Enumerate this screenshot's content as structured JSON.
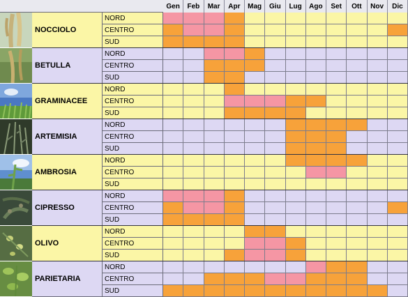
{
  "months": [
    "Gen",
    "Feb",
    "Mar",
    "Apr",
    "Mag",
    "Giu",
    "Lug",
    "Ago",
    "Set",
    "Ott",
    "Nov",
    "Dic"
  ],
  "regions": [
    "NORD",
    "CENTRO",
    "SUD"
  ],
  "legend_colors": {
    "0": "#fbf6a6",
    "1": "#f7a23a",
    "2": "#f596a4",
    "3": "#ddd8f3"
  },
  "plants": [
    {
      "name": "NOCCIOLO",
      "photo_icon": "hazel-catkin-photo",
      "label_bg": "#fbf6a6",
      "rows": [
        [
          2,
          2,
          2,
          1,
          0,
          0,
          0,
          0,
          0,
          0,
          0,
          0
        ],
        [
          1,
          2,
          2,
          1,
          0,
          0,
          0,
          0,
          0,
          0,
          0,
          1
        ],
        [
          1,
          1,
          1,
          1,
          0,
          0,
          0,
          0,
          0,
          0,
          0,
          0
        ]
      ]
    },
    {
      "name": "BETULLA",
      "photo_icon": "birch-catkin-photo",
      "label_bg": "#ddd8f3",
      "rows": [
        [
          3,
          3,
          2,
          2,
          1,
          3,
          3,
          3,
          3,
          3,
          3,
          3
        ],
        [
          3,
          3,
          1,
          1,
          1,
          3,
          3,
          3,
          3,
          3,
          3,
          3
        ],
        [
          3,
          3,
          1,
          1,
          3,
          3,
          3,
          3,
          3,
          3,
          3,
          3
        ]
      ]
    },
    {
      "name": "GRAMINACEE",
      "photo_icon": "grass-photo",
      "label_bg": "#fbf6a6",
      "rows": [
        [
          0,
          0,
          0,
          1,
          0,
          0,
          0,
          0,
          0,
          0,
          0,
          0
        ],
        [
          0,
          0,
          0,
          2,
          2,
          2,
          1,
          1,
          0,
          0,
          0,
          0
        ],
        [
          0,
          0,
          0,
          1,
          1,
          1,
          1,
          0,
          0,
          0,
          0,
          0
        ]
      ]
    },
    {
      "name": "ARTEMISIA",
      "photo_icon": "mugwort-photo",
      "label_bg": "#ddd8f3",
      "rows": [
        [
          3,
          3,
          3,
          3,
          3,
          3,
          1,
          1,
          1,
          1,
          3,
          3
        ],
        [
          3,
          3,
          3,
          3,
          3,
          3,
          1,
          1,
          1,
          3,
          3,
          3
        ],
        [
          3,
          3,
          3,
          3,
          3,
          3,
          1,
          1,
          1,
          3,
          3,
          3
        ]
      ]
    },
    {
      "name": "AMBROSIA",
      "photo_icon": "ragweed-photo",
      "label_bg": "#fbf6a6",
      "rows": [
        [
          0,
          0,
          0,
          0,
          0,
          0,
          1,
          1,
          1,
          1,
          0,
          0
        ],
        [
          0,
          0,
          0,
          0,
          0,
          0,
          0,
          2,
          2,
          0,
          0,
          0
        ],
        [
          0,
          0,
          0,
          0,
          0,
          0,
          0,
          0,
          0,
          0,
          0,
          0
        ]
      ]
    },
    {
      "name": "CIPRESSO",
      "photo_icon": "cypress-photo",
      "label_bg": "#ddd8f3",
      "rows": [
        [
          2,
          2,
          2,
          1,
          3,
          3,
          3,
          3,
          3,
          3,
          3,
          3
        ],
        [
          1,
          2,
          2,
          1,
          3,
          3,
          3,
          3,
          3,
          3,
          3,
          1
        ],
        [
          1,
          1,
          1,
          1,
          3,
          3,
          3,
          3,
          3,
          3,
          3,
          3
        ]
      ]
    },
    {
      "name": "OLIVO",
      "photo_icon": "olive-photo",
      "label_bg": "#fbf6a6",
      "rows": [
        [
          0,
          0,
          0,
          0,
          1,
          1,
          0,
          0,
          0,
          0,
          0,
          0
        ],
        [
          0,
          0,
          0,
          0,
          2,
          2,
          1,
          0,
          0,
          0,
          0,
          0
        ],
        [
          0,
          0,
          0,
          1,
          2,
          2,
          1,
          0,
          0,
          0,
          0,
          0
        ]
      ]
    },
    {
      "name": "PARIETARIA",
      "photo_icon": "pellitory-photo",
      "label_bg": "#ddd8f3",
      "rows": [
        [
          3,
          3,
          3,
          3,
          3,
          3,
          3,
          2,
          1,
          1,
          3,
          3
        ],
        [
          3,
          3,
          1,
          1,
          1,
          2,
          2,
          1,
          1,
          1,
          3,
          3
        ],
        [
          1,
          1,
          1,
          1,
          1,
          1,
          1,
          1,
          1,
          1,
          1,
          3
        ]
      ]
    }
  ]
}
